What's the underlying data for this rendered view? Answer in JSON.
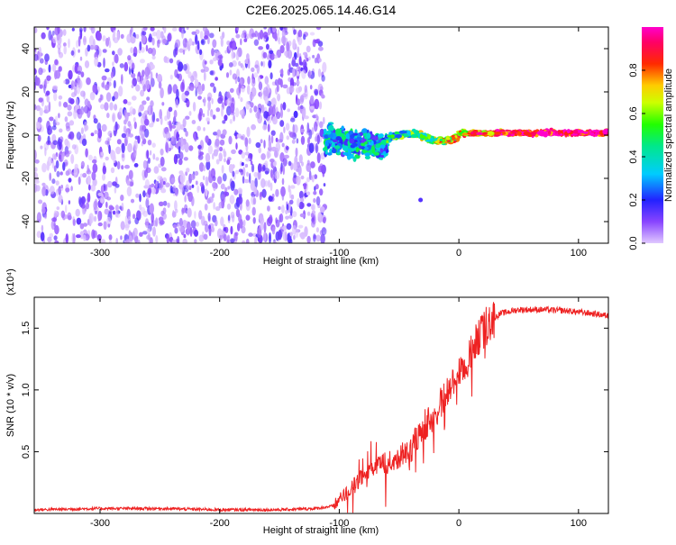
{
  "title": "C2E6.2025.065.14.46.G14",
  "chart_data": [
    {
      "type": "heatmap",
      "title": "C2E6.2025.065.14.46.G14",
      "xlabel": "Height of straight line (km)",
      "ylabel": "Frequency (Hz)",
      "xlim": [
        -355,
        125
      ],
      "ylim": [
        -50,
        50
      ],
      "x_ticks": [
        -300,
        -200,
        -100,
        0,
        100
      ],
      "x_tick_labels": [
        "-300",
        "-200",
        "-100",
        "0",
        "100"
      ],
      "y_ticks": [
        -40,
        -20,
        0,
        20,
        40
      ],
      "y_tick_labels": [
        "-40",
        "-20",
        "0",
        "20",
        "40"
      ],
      "colorbar": {
        "label": "Normalized spectral amplitude",
        "range": [
          0,
          1
        ],
        "ticks": [
          0,
          0.2,
          0.4,
          0.6,
          0.8
        ],
        "tick_labels": [
          "0.0",
          "0.2",
          "0.4",
          "0.6",
          "0.8"
        ],
        "colormap": "rainbow (purple-blue-cyan-green-yellow-red-magenta)"
      },
      "grid": false,
      "description_regions": [
        {
          "x_range": [
            -355,
            -112
          ],
          "y_range": [
            -50,
            50
          ],
          "amplitude": "low (0.0-0.2), noise"
        },
        {
          "x_range": [
            -112,
            -60
          ],
          "y_range": [
            -12,
            10
          ],
          "amplitude": "0.2-0.5"
        },
        {
          "x_range": [
            -60,
            125
          ],
          "y_range": [
            -3,
            3
          ],
          "amplitude": "0.5-1.0, narrow line near 0 Hz"
        }
      ]
    },
    {
      "type": "line",
      "xlabel": "Height of straight line (km)",
      "ylabel": "SNR (10 * v/v)",
      "y_multiplier": "(x10⁴)",
      "xlim": [
        -355,
        125
      ],
      "ylim": [
        0,
        1.75
      ],
      "x_ticks": [
        -300,
        -200,
        -100,
        0,
        100
      ],
      "x_tick_labels": [
        "-300",
        "-200",
        "-100",
        "0",
        "100"
      ],
      "y_ticks": [
        0.5,
        1.0,
        1.5
      ],
      "y_tick_labels": [
        "0.5",
        "1.0",
        "1.5"
      ],
      "series_color": "#ee2222",
      "grid": false,
      "series": [
        {
          "x": [
            -355,
            -300,
            -250,
            -200,
            -150,
            -120,
            -105,
            -95,
            -85,
            -75,
            -65,
            -55,
            -45,
            -35,
            -25,
            -15,
            -5,
            5,
            15,
            25,
            35,
            50,
            70,
            90,
            110,
            125
          ],
          "y": [
            0.03,
            0.04,
            0.04,
            0.03,
            0.03,
            0.04,
            0.06,
            0.15,
            0.25,
            0.35,
            0.4,
            0.42,
            0.5,
            0.6,
            0.75,
            0.9,
            1.05,
            1.2,
            1.4,
            1.55,
            1.62,
            1.65,
            1.65,
            1.64,
            1.62,
            1.6
          ]
        }
      ]
    }
  ]
}
